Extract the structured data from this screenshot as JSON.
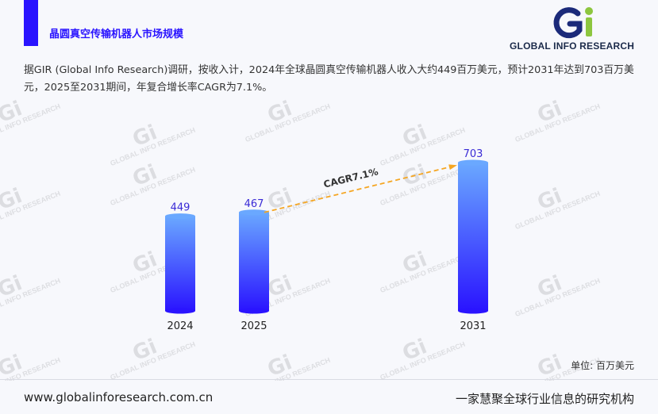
{
  "header": {
    "title": "晶圆真空传输机器人市场规模",
    "accent_color": "#2a14ff"
  },
  "logo": {
    "mark": "Gi",
    "text": "GLOBAL INFO RESEARCH"
  },
  "intro": "据GIR (Global Info Research)调研，按收入计，2024年全球晶圆真空传输机器人收入大约449百万美元，预计2031年达到703百万美元，2025至2031期间，年复合增长率CAGR为7.1%。",
  "watermark": {
    "mark": "Gi",
    "text": "GLOBAL INFO RESEARCH"
  },
  "chart_data": {
    "type": "bar",
    "categories": [
      "2024",
      "2025",
      "2031"
    ],
    "values": [
      449,
      467,
      703
    ],
    "ylim": [
      0,
      750
    ],
    "grid": false,
    "bar_color_top": "#6aa8ff",
    "bar_color_bottom": "#2a14ff",
    "label_color": "#3a2bd6",
    "annotation": {
      "text": "CAGR7.1%",
      "from": "2025",
      "to": "2031",
      "color": "#f5a623"
    }
  },
  "unit_label": "单位: 百万美元",
  "footer": {
    "url": "www.globalinforesearch.com.cn",
    "slogan": "一家慧聚全球行业信息的研究机构"
  }
}
